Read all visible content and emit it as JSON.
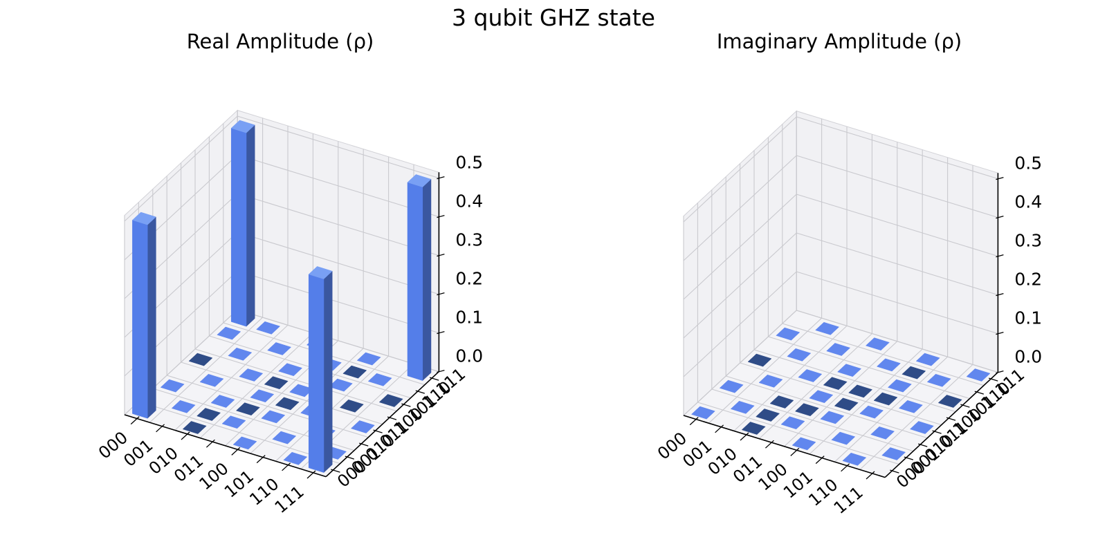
{
  "figure": {
    "title": "3 qubit GHZ state",
    "background": "#ffffff"
  },
  "chart_data": [
    {
      "type": "bar",
      "subtype": "3d-city-plot",
      "title": "Real Amplitude (ρ)",
      "basis_labels": [
        "000",
        "001",
        "010",
        "011",
        "100",
        "101",
        "110",
        "111"
      ],
      "z_ticks": [
        0.0,
        0.1,
        0.2,
        0.3,
        0.4,
        0.5
      ],
      "zlim": [
        0.0,
        0.5
      ],
      "grid": true,
      "matrix": [
        [
          0.5,
          0,
          0,
          0,
          0,
          0,
          0,
          0.5
        ],
        [
          0,
          0,
          0,
          0,
          0,
          0,
          0,
          0
        ],
        [
          0,
          0,
          0,
          0,
          0,
          0,
          0,
          0
        ],
        [
          0,
          0,
          0,
          0,
          0,
          0,
          0,
          0
        ],
        [
          0,
          0,
          0,
          0,
          0,
          0,
          0,
          0
        ],
        [
          0,
          0,
          0,
          0,
          0,
          0,
          0,
          0
        ],
        [
          0,
          0,
          0,
          0,
          0,
          0,
          0,
          0
        ],
        [
          0.5,
          0,
          0,
          0,
          0,
          0,
          0,
          0.5
        ]
      ],
      "dark_tiles": [
        [
          0,
          4
        ],
        [
          2,
          0
        ],
        [
          2,
          1
        ],
        [
          3,
          2
        ],
        [
          3,
          4
        ],
        [
          4,
          3
        ],
        [
          5,
          6
        ],
        [
          6,
          4
        ],
        [
          7,
          5
        ]
      ]
    },
    {
      "type": "bar",
      "subtype": "3d-city-plot",
      "title": "Imaginary Amplitude (ρ)",
      "basis_labels": [
        "000",
        "001",
        "010",
        "011",
        "100",
        "101",
        "110",
        "111"
      ],
      "z_ticks": [
        0.0,
        0.1,
        0.2,
        0.3,
        0.4,
        0.5
      ],
      "zlim": [
        0.0,
        0.5
      ],
      "grid": true,
      "matrix": [
        [
          0,
          0,
          0,
          0,
          0,
          0,
          0,
          0
        ],
        [
          0,
          0,
          0,
          0,
          0,
          0,
          0,
          0
        ],
        [
          0,
          0,
          0,
          0,
          0,
          0,
          0,
          0
        ],
        [
          0,
          0,
          0,
          0,
          0,
          0,
          0,
          0
        ],
        [
          0,
          0,
          0,
          0,
          0,
          0,
          0,
          0
        ],
        [
          0,
          0,
          0,
          0,
          0,
          0,
          0,
          0
        ],
        [
          0,
          0,
          0,
          0,
          0,
          0,
          0,
          0
        ],
        [
          0,
          0,
          0,
          0,
          0,
          0,
          0,
          0
        ]
      ],
      "dark_tiles": [
        [
          0,
          4
        ],
        [
          2,
          0
        ],
        [
          2,
          1
        ],
        [
          2,
          2
        ],
        [
          3,
          2
        ],
        [
          3,
          4
        ],
        [
          4,
          3
        ],
        [
          4,
          4
        ],
        [
          5,
          4
        ],
        [
          5,
          6
        ],
        [
          7,
          5
        ]
      ]
    }
  ],
  "colors": {
    "bar_top": "#79a0f4",
    "bar_front": "#547ee9",
    "bar_side": "#3a57a0",
    "tile_light": "#6187ee",
    "tile_dark": "#2f4c87",
    "pane_wall": "#f1f1f4",
    "pane_floor": "#f4f4f7",
    "grid_line": "#c9c9ce",
    "pane_edge": "#d2d2d7",
    "axis_line": "#000000",
    "text": "#000000"
  }
}
